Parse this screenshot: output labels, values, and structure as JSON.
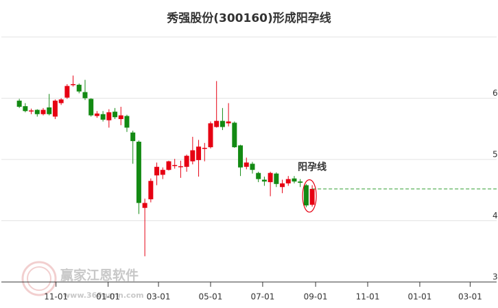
{
  "chart_data": {
    "type": "candlestick",
    "title": "秀强股份(300160)形成阳孕线",
    "up_color": "#e60012",
    "down_color": "#138a13",
    "xlim": [
      -64,
      516
    ],
    "xticks": [
      {
        "value": 0,
        "label": "11-01"
      },
      {
        "value": 61,
        "label": "01-01"
      },
      {
        "value": 120,
        "label": "03-01"
      },
      {
        "value": 181,
        "label": "05-01"
      },
      {
        "value": 242,
        "label": "07-01"
      },
      {
        "value": 304,
        "label": "09-01"
      },
      {
        "value": 365,
        "label": "11-01"
      },
      {
        "value": 426,
        "label": "01-01"
      },
      {
        "value": 485,
        "label": "03-01"
      }
    ],
    "ylim": [
      3,
      7
    ],
    "yticks": [
      3,
      4,
      5,
      6
    ],
    "grid": true,
    "x": [
      -43,
      -36,
      -29,
      -22,
      -15,
      -8,
      -1,
      6,
      13,
      20,
      27,
      34,
      41,
      48,
      55,
      62,
      69,
      76,
      83,
      90,
      97,
      104,
      111,
      118,
      125,
      132,
      139,
      146,
      153,
      160,
      167,
      174,
      181,
      188,
      195,
      202,
      209,
      216,
      223,
      230,
      237,
      244,
      251,
      258,
      265,
      272,
      279,
      286,
      293,
      300
    ],
    "open": [
      5.96,
      5.87,
      5.79,
      5.81,
      5.74,
      5.85,
      5.7,
      5.92,
      6.01,
      6.22,
      6.22,
      6.1,
      5.99,
      5.71,
      5.74,
      5.64,
      5.78,
      5.66,
      5.71,
      5.44,
      5.29,
      4.21,
      4.35,
      4.74,
      4.75,
      4.83,
      4.9,
      4.88,
      4.88,
      4.97,
      4.99,
      5.18,
      5.2,
      5.53,
      5.63,
      5.59,
      5.6,
      5.23,
      4.88,
      4.93,
      4.78,
      4.67,
      4.63,
      4.77,
      4.55,
      4.61,
      4.69,
      4.64,
      4.58,
      4.26
    ],
    "high": [
      5.99,
      5.92,
      5.83,
      5.82,
      5.84,
      6.07,
      5.98,
      6.0,
      6.23,
      6.37,
      6.24,
      6.3,
      6.0,
      5.79,
      5.79,
      5.82,
      5.84,
      5.86,
      5.73,
      5.47,
      5.31,
      4.36,
      4.69,
      4.95,
      4.87,
      4.98,
      5.01,
      4.98,
      5.08,
      5.37,
      5.32,
      5.27,
      5.62,
      6.28,
      5.84,
      5.92,
      5.62,
      5.24,
      5.03,
      4.96,
      4.8,
      4.72,
      4.8,
      4.79,
      4.67,
      4.73,
      4.73,
      4.68,
      4.6,
      4.58
    ],
    "low": [
      5.84,
      5.77,
      5.74,
      5.7,
      5.72,
      5.72,
      5.66,
      5.89,
      5.99,
      6.19,
      6.08,
      5.97,
      5.7,
      5.68,
      5.62,
      5.52,
      5.66,
      5.56,
      5.45,
      4.93,
      4.11,
      3.42,
      4.3,
      4.58,
      4.68,
      4.82,
      4.85,
      4.7,
      4.8,
      4.92,
      4.72,
      4.97,
      5.18,
      5.52,
      5.48,
      5.54,
      5.19,
      4.73,
      4.84,
      4.77,
      4.63,
      4.57,
      4.4,
      4.55,
      4.45,
      4.57,
      4.61,
      4.55,
      4.22,
      4.23
    ],
    "close": [
      5.86,
      5.79,
      5.8,
      5.74,
      5.81,
      5.74,
      5.96,
      5.98,
      6.2,
      6.23,
      6.11,
      6.0,
      5.72,
      5.75,
      5.65,
      5.77,
      5.69,
      5.72,
      5.52,
      5.3,
      4.29,
      4.29,
      4.65,
      4.88,
      4.83,
      4.97,
      4.91,
      4.89,
      5.06,
      5.15,
      5.21,
      5.19,
      5.59,
      5.63,
      5.53,
      5.62,
      5.2,
      4.87,
      4.95,
      4.83,
      4.68,
      4.64,
      4.78,
      4.6,
      4.61,
      4.68,
      4.64,
      4.62,
      4.25,
      4.52
    ],
    "reference_line": 4.52,
    "reference_color": "#2e9e2e",
    "annotation": "阳孕线",
    "annotation_color": "#e60012",
    "watermark": "赢家江恩软件",
    "watermark_url": "www.360gann.com"
  }
}
